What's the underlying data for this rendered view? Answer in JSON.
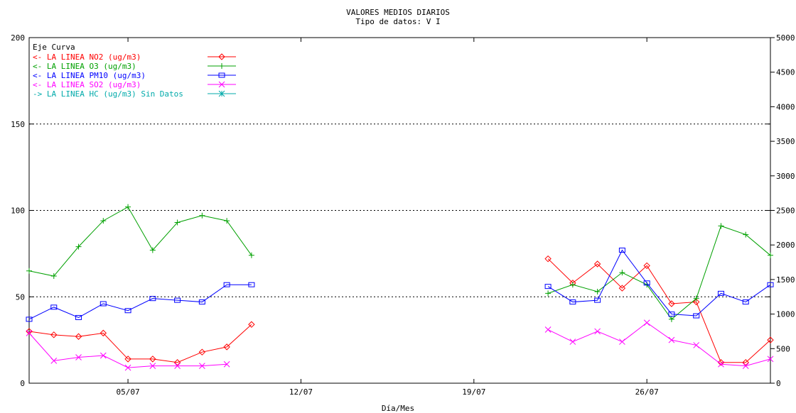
{
  "chart_data": {
    "type": "line",
    "title": "VALORES MEDIOS DIARIOS",
    "subtitle": "Tipo de datos:  V I",
    "xlabel": "Día/Mes",
    "legend_header": "Eje Curva",
    "x_ticks": [
      "05/07",
      "12/07",
      "19/07",
      "26/07"
    ],
    "x_tick_days": [
      5,
      12,
      19,
      26
    ],
    "xlim": [
      1,
      31
    ],
    "y_left": {
      "lim": [
        0,
        200
      ],
      "ticks": [
        0,
        50,
        100,
        150,
        200
      ],
      "tick_labels": [
        "0",
        "50",
        "100",
        "150",
        "200"
      ]
    },
    "y_right": {
      "lim": [
        0,
        5000
      ],
      "ticks": [
        0,
        500,
        1000,
        1500,
        2000,
        2500,
        3000,
        3500,
        4000,
        4500,
        5000
      ],
      "tick_labels": [
        "0",
        "500",
        "1000",
        "1500",
        "2000",
        "2500",
        "3000",
        "3500",
        "4000",
        "4500",
        "5000"
      ]
    },
    "gridlines_y": [
      50,
      100,
      150
    ],
    "series": [
      {
        "name": "LA LINEA NO2",
        "legend_text": "<-  LA LINEA NO2  (ug/m3)",
        "axis": "left",
        "color": "#ff0000",
        "marker": "diamond",
        "x": [
          1,
          2,
          3,
          4,
          5,
          6,
          7,
          8,
          9,
          10,
          11,
          22,
          23,
          24,
          25,
          26,
          27,
          28,
          29,
          30,
          31
        ],
        "y": [
          30,
          28,
          27,
          29,
          14,
          14,
          12,
          18,
          21,
          34,
          null,
          72,
          58,
          69,
          55,
          68,
          46,
          47,
          12,
          12,
          25
        ]
      },
      {
        "name": "LA LINEA O3",
        "legend_text": "<-  LA LINEA O3  (ug/m3)",
        "axis": "left",
        "color": "#00a000",
        "marker": "plus",
        "x": [
          1,
          2,
          3,
          4,
          5,
          6,
          7,
          8,
          9,
          10,
          11,
          22,
          23,
          24,
          25,
          26,
          27,
          28,
          29,
          30,
          31
        ],
        "y": [
          65,
          62,
          79,
          94,
          102,
          77,
          93,
          97,
          94,
          74,
          null,
          52,
          57,
          53,
          64,
          57,
          37,
          49,
          91,
          86,
          74
        ]
      },
      {
        "name": "LA LINEA PM10",
        "legend_text": "<-  LA LINEA PM10  (ug/m3)",
        "axis": "left",
        "color": "#0000ff",
        "marker": "square",
        "x": [
          1,
          2,
          3,
          4,
          5,
          6,
          7,
          8,
          9,
          10,
          11,
          22,
          23,
          24,
          25,
          26,
          27,
          28,
          29,
          30,
          31
        ],
        "y": [
          37,
          44,
          38,
          46,
          42,
          49,
          48,
          47,
          57,
          57,
          null,
          56,
          47,
          48,
          77,
          58,
          40,
          39,
          52,
          47,
          57
        ]
      },
      {
        "name": "LA LINEA SO2",
        "legend_text": "<-  LA LINEA SO2  (ug/m3)",
        "axis": "left",
        "color": "#ff00ff",
        "marker": "x",
        "x": [
          1,
          2,
          3,
          4,
          5,
          6,
          7,
          8,
          9,
          10,
          22,
          23,
          24,
          25,
          26,
          27,
          28,
          29,
          30,
          31
        ],
        "y": [
          29,
          13,
          15,
          16,
          9,
          10,
          10,
          10,
          11,
          null,
          31,
          24,
          30,
          24,
          35,
          25,
          22,
          11,
          10,
          14
        ]
      },
      {
        "name": "LA LINEA HC",
        "legend_text": "->  LA LINEA HC  (ug/m3) Sin Datos",
        "axis": "right",
        "color": "#00aaaa",
        "marker": "star",
        "x": [],
        "y": []
      }
    ]
  }
}
